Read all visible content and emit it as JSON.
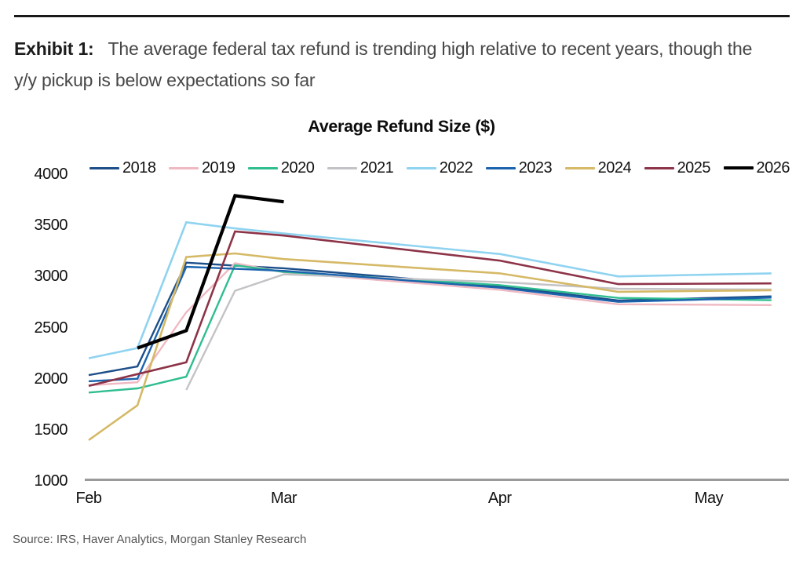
{
  "header": {
    "exhibit_label": "Exhibit 1:",
    "title_text": "The average federal tax refund is trending high relative to recent years, though the y/y pickup is below expectations so far"
  },
  "source": "Source: IRS, Haver Analytics, Morgan Stanley Research",
  "chart_data": {
    "type": "line",
    "title": "Average Refund Size ($)",
    "xlabel": "",
    "ylabel": "",
    "ylim": [
      1000,
      4000
    ],
    "y_ticks": [
      4000,
      3500,
      3000,
      2500,
      2000,
      1500,
      1000
    ],
    "x_axis_unit": "days since Feb 1",
    "x_range_days": [
      -0.5,
      100.5
    ],
    "x_ticks": [
      {
        "label": "Feb",
        "day": 0
      },
      {
        "label": "Mar",
        "day": 28
      },
      {
        "label": "Apr",
        "day": 59
      },
      {
        "label": "May",
        "day": 89
      }
    ],
    "grid": false,
    "legend_position": "top",
    "series": [
      {
        "name": "2018",
        "color": "#1d4e89",
        "line_width": 2.4,
        "x_days": [
          0,
          7,
          14,
          21,
          28,
          59,
          76,
          98
        ],
        "values": [
          2035,
          2120,
          3135,
          3105,
          3080,
          2905,
          2765,
          2805
        ]
      },
      {
        "name": "2019",
        "color": "#efb9c3",
        "line_width": 2.4,
        "x_days": [
          0,
          7,
          14,
          21,
          28,
          59,
          76,
          98
        ],
        "values": [
          1935,
          1965,
          2650,
          3130,
          3040,
          2870,
          2728,
          2720
        ]
      },
      {
        "name": "2020",
        "color": "#2fbd90",
        "line_width": 2.4,
        "x_days": [
          0,
          7,
          14,
          21,
          28,
          59,
          76,
          98
        ],
        "values": [
          1865,
          1905,
          2020,
          3110,
          3045,
          2915,
          2790,
          2768
        ]
      },
      {
        "name": "2021",
        "color": "#c3c3c7",
        "line_width": 2.4,
        "x_days": [
          14,
          21,
          28,
          59,
          76,
          98
        ],
        "values": [
          1890,
          2860,
          3020,
          2945,
          2880,
          2872
        ]
      },
      {
        "name": "2022",
        "color": "#8fd3f0",
        "line_width": 2.6,
        "x_days": [
          0,
          7,
          14,
          21,
          28,
          59,
          76,
          98
        ],
        "values": [
          2200,
          2300,
          3530,
          3470,
          3420,
          3220,
          3000,
          3030
        ]
      },
      {
        "name": "2023",
        "color": "#1c63ae",
        "line_width": 2.4,
        "x_days": [
          0,
          7,
          14,
          21,
          28,
          59,
          76,
          98
        ],
        "values": [
          1975,
          2000,
          3095,
          3075,
          3055,
          2890,
          2752,
          2793
        ]
      },
      {
        "name": "2024",
        "color": "#d5b966",
        "line_width": 2.6,
        "x_days": [
          0,
          7,
          14,
          21,
          28,
          59,
          76,
          98
        ],
        "values": [
          1400,
          1740,
          3190,
          3225,
          3170,
          3030,
          2850,
          2865
        ]
      },
      {
        "name": "2025",
        "color": "#8d3348",
        "line_width": 2.6,
        "x_days": [
          0,
          7,
          14,
          21,
          28,
          59,
          76,
          98
        ],
        "values": [
          1930,
          2045,
          2160,
          3440,
          3400,
          3155,
          2925,
          2932
        ]
      },
      {
        "name": "2026",
        "color": "#000000",
        "line_width": 4.2,
        "x_days": [
          7,
          14,
          21,
          28
        ],
        "values": [
          2300,
          2470,
          3790,
          3730
        ]
      }
    ]
  }
}
